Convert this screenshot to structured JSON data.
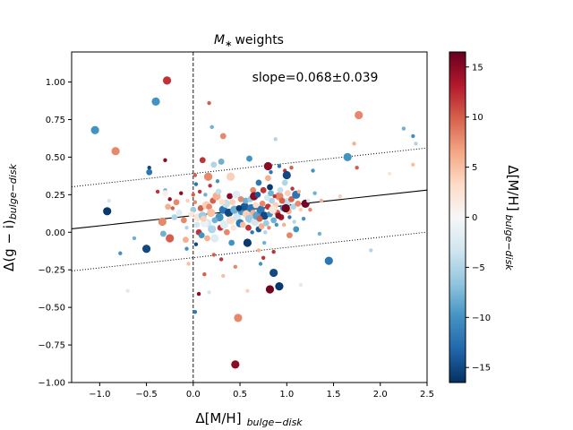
{
  "chart_data": {
    "type": "scatter",
    "title": "M∗ weights",
    "xlabel_main": "Δ[M/H]",
    "xlabel_sub": "bulge−disk",
    "ylabel_main": "Δ(g − i)",
    "ylabel_sub": "bulge−disk",
    "colorbar_label_main": "Δ[M/H]",
    "colorbar_label_sub": "bulge−disk",
    "annotation": "slope=0.068±0.039",
    "xlim": [
      -1.3,
      2.5
    ],
    "ylim": [
      -1.0,
      1.2
    ],
    "clim": [
      -16.5,
      16.5
    ],
    "xticks": [
      -1.0,
      -0.5,
      0.0,
      0.5,
      1.0,
      1.5,
      2.0,
      2.5
    ],
    "xtick_labels": [
      "−1.0",
      "−0.5",
      "0.0",
      "0.5",
      "1.0",
      "1.5",
      "2.0",
      "2.5"
    ],
    "yticks": [
      -1.0,
      -0.75,
      -0.5,
      -0.25,
      0.0,
      0.25,
      0.5,
      0.75,
      1.0
    ],
    "ytick_labels": [
      "−1.00",
      "−0.75",
      "−0.50",
      "−0.25",
      "0.00",
      "0.25",
      "0.50",
      "0.75",
      "1.00"
    ],
    "cticks": [
      -15,
      -10,
      -5,
      0,
      5,
      10,
      15
    ],
    "ctick_labels": [
      "−15",
      "−10",
      "−5",
      "0",
      "5",
      "10",
      "15"
    ],
    "fit": {
      "slope": 0.068,
      "intercept": 0.111,
      "offset": 0.28
    },
    "vline_x": 0.0,
    "points": [
      {
        "x": -1.05,
        "y": 0.68,
        "c": -10,
        "s": 2
      },
      {
        "x": -0.83,
        "y": 0.54,
        "c": 8,
        "s": 2
      },
      {
        "x": -0.28,
        "y": 1.01,
        "c": 12,
        "s": 2
      },
      {
        "x": -0.4,
        "y": 0.87,
        "c": -10,
        "s": 2
      },
      {
        "x": 0.17,
        "y": 0.86,
        "c": 10,
        "s": 0
      },
      {
        "x": 0.2,
        "y": 0.7,
        "c": -8,
        "s": 0
      },
      {
        "x": 1.77,
        "y": 0.78,
        "c": 8,
        "s": 2
      },
      {
        "x": 2.25,
        "y": 0.69,
        "c": -8,
        "s": 0
      },
      {
        "x": 2.35,
        "y": 0.64,
        "c": -10,
        "s": 0
      },
      {
        "x": 2.38,
        "y": 0.59,
        "c": -5,
        "s": 0
      },
      {
        "x": 1.72,
        "y": 0.59,
        "c": 6,
        "s": 0
      },
      {
        "x": 0.88,
        "y": 0.62,
        "c": -5,
        "s": 0
      },
      {
        "x": 0.32,
        "y": 0.64,
        "c": 8,
        "s": 1
      },
      {
        "x": 1.65,
        "y": 0.5,
        "c": -10,
        "s": 2
      },
      {
        "x": 1.75,
        "y": 0.43,
        "c": 10,
        "s": 0
      },
      {
        "x": 2.35,
        "y": 0.45,
        "c": 5,
        "s": 0
      },
      {
        "x": 2.1,
        "y": 0.39,
        "c": 2,
        "s": 0
      },
      {
        "x": -0.47,
        "y": 0.43,
        "c": -15,
        "s": 0
      },
      {
        "x": -0.47,
        "y": 0.4,
        "c": -12,
        "s": 1
      },
      {
        "x": -0.3,
        "y": 0.48,
        "c": 15,
        "s": 0
      },
      {
        "x": 0.1,
        "y": 0.48,
        "c": 12,
        "s": 1
      },
      {
        "x": 0.22,
        "y": 0.45,
        "c": -5,
        "s": 1
      },
      {
        "x": 0.3,
        "y": 0.47,
        "c": -8,
        "s": 1
      },
      {
        "x": 0.6,
        "y": 0.49,
        "c": -10,
        "s": 1
      },
      {
        "x": 0.8,
        "y": 0.44,
        "c": 15,
        "s": 2
      },
      {
        "x": 0.83,
        "y": 0.4,
        "c": -12,
        "s": 0
      },
      {
        "x": 0.92,
        "y": 0.44,
        "c": -12,
        "s": 0
      },
      {
        "x": 0.98,
        "y": 0.41,
        "c": 12,
        "s": 0
      },
      {
        "x": 1.05,
        "y": 0.43,
        "c": 10,
        "s": 0
      },
      {
        "x": 1.28,
        "y": 0.41,
        "c": -10,
        "s": 0
      },
      {
        "x": 1.0,
        "y": 0.38,
        "c": -15,
        "s": 2
      },
      {
        "x": 0.8,
        "y": 0.36,
        "c": 6,
        "s": 1
      },
      {
        "x": 0.7,
        "y": 0.33,
        "c": -12,
        "s": 1
      },
      {
        "x": 0.82,
        "y": 0.3,
        "c": -16,
        "s": 1
      },
      {
        "x": 0.64,
        "y": 0.28,
        "c": 8,
        "s": 1
      },
      {
        "x": 0.98,
        "y": 0.33,
        "c": -5,
        "s": 1
      },
      {
        "x": 0.16,
        "y": 0.37,
        "c": 8,
        "s": 2
      },
      {
        "x": 0.26,
        "y": 0.34,
        "c": -10,
        "s": 0
      },
      {
        "x": 0.4,
        "y": 0.37,
        "c": 4,
        "s": 2
      },
      {
        "x": 0.02,
        "y": 0.38,
        "c": 10,
        "s": 0
      },
      {
        "x": 0.03,
        "y": 0.32,
        "c": -12,
        "s": 0
      },
      {
        "x": 0.18,
        "y": 0.31,
        "c": 12,
        "s": 0
      },
      {
        "x": 0.0,
        "y": 0.25,
        "c": 10,
        "s": 0
      },
      {
        "x": -0.13,
        "y": 0.26,
        "c": 15,
        "s": 0
      },
      {
        "x": -0.3,
        "y": 0.28,
        "c": -8,
        "s": 0
      },
      {
        "x": -0.38,
        "y": 0.27,
        "c": 12,
        "s": 0
      },
      {
        "x": -0.25,
        "y": 0.22,
        "c": 15,
        "s": 0
      },
      {
        "x": -0.18,
        "y": 0.2,
        "c": 8,
        "s": 1
      },
      {
        "x": -0.06,
        "y": 0.21,
        "c": 4,
        "s": 0
      },
      {
        "x": -0.27,
        "y": 0.17,
        "c": 6,
        "s": 1
      },
      {
        "x": -0.22,
        "y": 0.16,
        "c": 10,
        "s": 0
      },
      {
        "x": -0.3,
        "y": 0.26,
        "c": 1,
        "s": 1
      },
      {
        "x": -0.9,
        "y": 0.21,
        "c": -3,
        "s": 0
      },
      {
        "x": -0.92,
        "y": 0.14,
        "c": -16,
        "s": 2
      },
      {
        "x": -0.33,
        "y": 0.07,
        "c": 8,
        "s": 2
      },
      {
        "x": -0.2,
        "y": 0.1,
        "c": -5,
        "s": 1
      },
      {
        "x": -0.25,
        "y": -0.04,
        "c": 10,
        "s": 2
      },
      {
        "x": -0.32,
        "y": -0.01,
        "c": -8,
        "s": 1
      },
      {
        "x": -0.5,
        "y": -0.11,
        "c": -15,
        "s": 2
      },
      {
        "x": -0.63,
        "y": -0.04,
        "c": -8,
        "s": 0
      },
      {
        "x": -0.78,
        "y": -0.14,
        "c": -10,
        "s": 0
      },
      {
        "x": -0.7,
        "y": -0.39,
        "c": -2,
        "s": 0
      },
      {
        "x": -0.08,
        "y": -0.05,
        "c": 6,
        "s": 1
      },
      {
        "x": -0.07,
        "y": -0.11,
        "c": -10,
        "s": 0
      },
      {
        "x": 0.03,
        "y": -0.08,
        "c": -15,
        "s": 0
      },
      {
        "x": -0.07,
        "y": 0.03,
        "c": -5,
        "s": 0
      },
      {
        "x": 0.06,
        "y": 0.0,
        "c": 12,
        "s": 1
      },
      {
        "x": -0.05,
        "y": -0.21,
        "c": 5,
        "s": 0
      },
      {
        "x": 0.02,
        "y": -0.53,
        "c": -12,
        "s": 0
      },
      {
        "x": 0.06,
        "y": -0.41,
        "c": 15,
        "s": 0
      },
      {
        "x": 0.12,
        "y": -0.28,
        "c": 10,
        "s": 0
      },
      {
        "x": 0.17,
        "y": -0.4,
        "c": -3,
        "s": 0
      },
      {
        "x": 0.22,
        "y": -0.15,
        "c": 10,
        "s": 0
      },
      {
        "x": 0.3,
        "y": -0.18,
        "c": 12,
        "s": 0
      },
      {
        "x": 0.32,
        "y": -0.29,
        "c": 5,
        "s": 0
      },
      {
        "x": 0.45,
        "y": -0.23,
        "c": 8,
        "s": 0
      },
      {
        "x": 0.41,
        "y": -0.07,
        "c": -10,
        "s": 1
      },
      {
        "x": 0.58,
        "y": -0.07,
        "c": -16,
        "s": 2
      },
      {
        "x": 0.58,
        "y": -0.39,
        "c": 4,
        "s": 0
      },
      {
        "x": 0.7,
        "y": -0.12,
        "c": 6,
        "s": 0
      },
      {
        "x": 0.76,
        "y": -0.07,
        "c": -8,
        "s": 0
      },
      {
        "x": 0.72,
        "y": -0.21,
        "c": -10,
        "s": 0
      },
      {
        "x": 0.75,
        "y": -0.17,
        "c": 12,
        "s": 0
      },
      {
        "x": 0.86,
        "y": -0.13,
        "c": 12,
        "s": 0
      },
      {
        "x": 0.86,
        "y": -0.27,
        "c": -15,
        "s": 2
      },
      {
        "x": 0.92,
        "y": -0.36,
        "c": -16,
        "s": 2
      },
      {
        "x": 0.82,
        "y": -0.38,
        "c": 16,
        "s": 2
      },
      {
        "x": 1.15,
        "y": -0.35,
        "c": -2,
        "s": 0
      },
      {
        "x": 1.03,
        "y": -0.02,
        "c": 8,
        "s": 1
      },
      {
        "x": 1.1,
        "y": 0.02,
        "c": -10,
        "s": 1
      },
      {
        "x": 1.35,
        "y": -0.01,
        "c": -8,
        "s": 0
      },
      {
        "x": 1.45,
        "y": -0.19,
        "c": -12,
        "s": 2
      },
      {
        "x": 1.9,
        "y": -0.12,
        "c": -5,
        "s": 0
      },
      {
        "x": 0.48,
        "y": -0.57,
        "c": 8,
        "s": 2
      },
      {
        "x": 0.45,
        "y": -0.88,
        "c": 15,
        "s": 2
      },
      {
        "x": 0.15,
        "y": 0.06,
        "c": -3,
        "s": 2
      },
      {
        "x": 0.2,
        "y": 0.02,
        "c": -5,
        "s": 2
      },
      {
        "x": 0.23,
        "y": -0.04,
        "c": -2,
        "s": 2
      },
      {
        "x": 0.28,
        "y": 0.1,
        "c": -10,
        "s": 2
      },
      {
        "x": 0.32,
        "y": 0.15,
        "c": -12,
        "s": 2
      },
      {
        "x": 0.35,
        "y": 0.19,
        "c": -4,
        "s": 2
      },
      {
        "x": 0.38,
        "y": 0.13,
        "c": -15,
        "s": 2
      },
      {
        "x": 0.4,
        "y": 0.08,
        "c": 3,
        "s": 2
      },
      {
        "x": 0.42,
        "y": 0.2,
        "c": 4,
        "s": 1
      },
      {
        "x": 0.44,
        "y": 0.15,
        "c": -8,
        "s": 2
      },
      {
        "x": 0.47,
        "y": 0.1,
        "c": -3,
        "s": 2
      },
      {
        "x": 0.5,
        "y": 0.06,
        "c": -12,
        "s": 2
      },
      {
        "x": 0.52,
        "y": 0.14,
        "c": -10,
        "s": 2
      },
      {
        "x": 0.55,
        "y": 0.17,
        "c": -14,
        "s": 2
      },
      {
        "x": 0.57,
        "y": 0.12,
        "c": 4,
        "s": 2
      },
      {
        "x": 0.6,
        "y": 0.09,
        "c": -6,
        "s": 2
      },
      {
        "x": 0.62,
        "y": 0.16,
        "c": -12,
        "s": 2
      },
      {
        "x": 0.64,
        "y": 0.13,
        "c": 6,
        "s": 1
      },
      {
        "x": 0.66,
        "y": 0.07,
        "c": -3,
        "s": 2
      },
      {
        "x": 0.68,
        "y": 0.11,
        "c": -9,
        "s": 2
      },
      {
        "x": 0.7,
        "y": 0.02,
        "c": -14,
        "s": 1
      },
      {
        "x": 0.72,
        "y": 0.15,
        "c": -12,
        "s": 2
      },
      {
        "x": 0.74,
        "y": 0.19,
        "c": 8,
        "s": 1
      },
      {
        "x": 0.76,
        "y": 0.11,
        "c": -15,
        "s": 2
      },
      {
        "x": 0.78,
        "y": 0.06,
        "c": -6,
        "s": 1
      },
      {
        "x": 0.8,
        "y": 0.17,
        "c": 12,
        "s": 1
      },
      {
        "x": 0.82,
        "y": 0.12,
        "c": -10,
        "s": 1
      },
      {
        "x": 0.84,
        "y": 0.21,
        "c": -5,
        "s": 1
      },
      {
        "x": 0.86,
        "y": 0.08,
        "c": -8,
        "s": 1
      },
      {
        "x": 0.88,
        "y": 0.18,
        "c": 4,
        "s": 1
      },
      {
        "x": 0.9,
        "y": 0.13,
        "c": 10,
        "s": 1
      },
      {
        "x": 0.92,
        "y": 0.24,
        "c": 8,
        "s": 2
      },
      {
        "x": 0.94,
        "y": 0.1,
        "c": 14,
        "s": 1
      },
      {
        "x": 0.96,
        "y": 0.16,
        "c": -10,
        "s": 1
      },
      {
        "x": 1.0,
        "y": 0.2,
        "c": -4,
        "s": 2
      },
      {
        "x": 1.02,
        "y": 0.14,
        "c": 6,
        "s": 1
      },
      {
        "x": 1.05,
        "y": 0.22,
        "c": 10,
        "s": 1
      },
      {
        "x": 1.07,
        "y": 0.17,
        "c": -5,
        "s": 1
      },
      {
        "x": 1.1,
        "y": 0.25,
        "c": -12,
        "s": 2
      },
      {
        "x": 1.12,
        "y": 0.19,
        "c": 8,
        "s": 1
      },
      {
        "x": 1.15,
        "y": 0.15,
        "c": 4,
        "s": 0
      },
      {
        "x": 1.2,
        "y": 0.19,
        "c": 16,
        "s": 2
      },
      {
        "x": 1.3,
        "y": 0.26,
        "c": -8,
        "s": 0
      },
      {
        "x": 1.37,
        "y": 0.21,
        "c": 6,
        "s": 0
      },
      {
        "x": 1.57,
        "y": 0.24,
        "c": 4,
        "s": 0
      },
      {
        "x": 0.05,
        "y": 0.1,
        "c": 2,
        "s": 2
      },
      {
        "x": 0.08,
        "y": 0.16,
        "c": 10,
        "s": 1
      },
      {
        "x": 0.1,
        "y": 0.11,
        "c": -6,
        "s": 2
      },
      {
        "x": 0.12,
        "y": 0.06,
        "c": -1,
        "s": 2
      },
      {
        "x": 0.14,
        "y": 0.18,
        "c": 4,
        "s": 2
      },
      {
        "x": 0.17,
        "y": 0.17,
        "c": 8,
        "s": 1
      },
      {
        "x": 0.19,
        "y": 0.13,
        "c": 5,
        "s": 2
      },
      {
        "x": 0.21,
        "y": 0.21,
        "c": 10,
        "s": 1
      },
      {
        "x": 0.23,
        "y": 0.08,
        "c": -8,
        "s": 1
      },
      {
        "x": 0.25,
        "y": 0.24,
        "c": 6,
        "s": 2
      },
      {
        "x": 0.27,
        "y": 0.27,
        "c": -4,
        "s": 1
      },
      {
        "x": 0.29,
        "y": 0.03,
        "c": 12,
        "s": 1
      },
      {
        "x": 0.31,
        "y": 0.2,
        "c": 3,
        "s": 1
      },
      {
        "x": 0.33,
        "y": 0.05,
        "c": -2,
        "s": 2
      },
      {
        "x": 0.36,
        "y": 0.0,
        "c": 8,
        "s": 1
      },
      {
        "x": 0.39,
        "y": 0.24,
        "c": 15,
        "s": 1
      },
      {
        "x": 0.43,
        "y": 0.03,
        "c": 2,
        "s": 1
      },
      {
        "x": 0.46,
        "y": 0.25,
        "c": -2,
        "s": 2
      },
      {
        "x": 0.49,
        "y": 0.16,
        "c": -16,
        "s": 1
      },
      {
        "x": 0.51,
        "y": 0.22,
        "c": 8,
        "s": 1
      },
      {
        "x": 0.53,
        "y": 0.05,
        "c": 5,
        "s": 1
      },
      {
        "x": 0.56,
        "y": 0.21,
        "c": -8,
        "s": 1
      },
      {
        "x": 0.59,
        "y": 0.03,
        "c": 12,
        "s": 1
      },
      {
        "x": 0.61,
        "y": 0.22,
        "c": -6,
        "s": 1
      },
      {
        "x": 0.63,
        "y": 0.0,
        "c": -12,
        "s": 0
      },
      {
        "x": 0.65,
        "y": 0.24,
        "c": 15,
        "s": 2
      },
      {
        "x": 0.67,
        "y": 0.18,
        "c": 3,
        "s": 1
      },
      {
        "x": 0.69,
        "y": 0.25,
        "c": -14,
        "s": 1
      },
      {
        "x": 0.71,
        "y": 0.09,
        "c": 10,
        "s": 1
      },
      {
        "x": 0.73,
        "y": 0.04,
        "c": 6,
        "s": 1
      },
      {
        "x": 0.75,
        "y": 0.28,
        "c": 12,
        "s": 1
      },
      {
        "x": 0.77,
        "y": 0.0,
        "c": -5,
        "s": 0
      },
      {
        "x": 0.79,
        "y": 0.23,
        "c": -3,
        "s": 1
      },
      {
        "x": 0.81,
        "y": 0.03,
        "c": 8,
        "s": 0
      },
      {
        "x": 0.83,
        "y": 0.26,
        "c": -8,
        "s": 1
      },
      {
        "x": 0.85,
        "y": 0.15,
        "c": 2,
        "s": 2
      },
      {
        "x": 0.87,
        "y": 0.24,
        "c": 12,
        "s": 0
      },
      {
        "x": 0.89,
        "y": 0.05,
        "c": -10,
        "s": 0
      },
      {
        "x": 0.91,
        "y": 0.11,
        "c": 15,
        "s": 1
      },
      {
        "x": 0.93,
        "y": 0.28,
        "c": -4,
        "s": 1
      },
      {
        "x": 0.95,
        "y": 0.21,
        "c": 10,
        "s": 1
      },
      {
        "x": 0.97,
        "y": 0.05,
        "c": 6,
        "s": 0
      },
      {
        "x": 0.99,
        "y": 0.16,
        "c": 16,
        "s": 2
      },
      {
        "x": 1.01,
        "y": 0.26,
        "c": 4,
        "s": 1
      },
      {
        "x": 1.03,
        "y": 0.1,
        "c": -12,
        "s": 0
      },
      {
        "x": 1.06,
        "y": 0.29,
        "c": 12,
        "s": 0
      },
      {
        "x": 1.08,
        "y": 0.07,
        "c": -5,
        "s": 0
      },
      {
        "x": 1.13,
        "y": 0.27,
        "c": 6,
        "s": 0
      },
      {
        "x": 1.18,
        "y": 0.09,
        "c": -10,
        "s": 0
      },
      {
        "x": 1.23,
        "y": 0.21,
        "c": -3,
        "s": 0
      },
      {
        "x": 1.25,
        "y": 0.15,
        "c": 8,
        "s": 0
      },
      {
        "x": 0.0,
        "y": 0.15,
        "c": -6,
        "s": 1
      },
      {
        "x": 0.02,
        "y": 0.2,
        "c": 8,
        "s": 0
      },
      {
        "x": 0.04,
        "y": 0.05,
        "c": -3,
        "s": 1
      },
      {
        "x": 0.07,
        "y": 0.27,
        "c": 12,
        "s": 0
      },
      {
        "x": 0.09,
        "y": -0.02,
        "c": -10,
        "s": 1
      },
      {
        "x": 0.11,
        "y": 0.09,
        "c": 4,
        "s": 1
      },
      {
        "x": 0.13,
        "y": 0.25,
        "c": -8,
        "s": 0
      },
      {
        "x": 0.15,
        "y": -0.04,
        "c": 6,
        "s": 1
      },
      {
        "x": -0.02,
        "y": 0.12,
        "c": 2,
        "s": 1
      },
      {
        "x": -0.1,
        "y": 0.08,
        "c": 8,
        "s": 1
      },
      {
        "x": -0.15,
        "y": 0.13,
        "c": -2,
        "s": 1
      }
    ]
  }
}
